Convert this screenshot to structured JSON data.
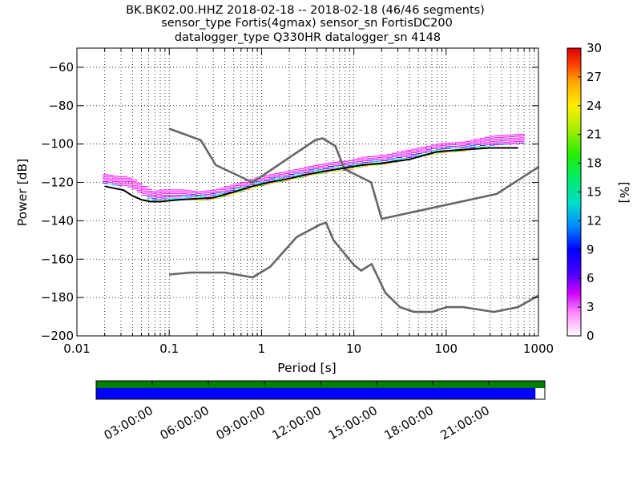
{
  "chart_data": {
    "type": "ppsd",
    "title_lines": [
      "BK.BK02.00.HHZ   2018-02-18 -- 2018-02-18  (46/46 segments)",
      "sensor_type Fortis(4gmax) sensor_sn FortisDC200",
      "datalogger_type Q330HR datalogger_sn 4148"
    ],
    "xlabel": "Period [s]",
    "ylabel": "Power [dB]",
    "xscale": "log",
    "xlim": [
      0.01,
      1000
    ],
    "ylim": [
      -200,
      -50
    ],
    "x_ticks": [
      0.01,
      0.1,
      1,
      10,
      100,
      1000
    ],
    "x_tick_labels": [
      "0.01",
      "0.1",
      "1",
      "10",
      "100",
      "1000"
    ],
    "y_ticks": [
      -60,
      -80,
      -100,
      -120,
      -140,
      -160,
      -180,
      -200
    ],
    "y_tick_labels": [
      "−60",
      "−80",
      "−100",
      "−120",
      "−140",
      "−160",
      "−180",
      "−200"
    ],
    "grid": "dotted",
    "colorbar": {
      "label": "[%]",
      "range": [
        0,
        30
      ],
      "ticks": [
        0,
        3,
        6,
        9,
        12,
        15,
        18,
        21,
        24,
        27,
        30
      ],
      "tick_labels": [
        "0",
        "3",
        "6",
        "9",
        "12",
        "15",
        "18",
        "21",
        "24",
        "27",
        "30"
      ]
    },
    "series": [
      {
        "role": "model-high",
        "color": "#666666",
        "points": [
          [
            0.1,
            -92
          ],
          [
            0.22,
            -98
          ],
          [
            0.32,
            -111
          ],
          [
            0.8,
            -120
          ],
          [
            3.8,
            -98
          ],
          [
            4.6,
            -97
          ],
          [
            6.3,
            -101
          ],
          [
            7.9,
            -113
          ],
          [
            15.4,
            -120
          ],
          [
            20,
            -139
          ],
          [
            354,
            -126
          ],
          [
            1000,
            -112
          ]
        ]
      },
      {
        "role": "model-low",
        "color": "#666666",
        "points": [
          [
            0.1,
            -168
          ],
          [
            0.17,
            -167
          ],
          [
            0.4,
            -167
          ],
          [
            0.8,
            -169.5
          ],
          [
            1.24,
            -164
          ],
          [
            2.4,
            -148.5
          ],
          [
            4.3,
            -142
          ],
          [
            5,
            -141
          ],
          [
            6,
            -150
          ],
          [
            10,
            -163
          ],
          [
            12,
            -166
          ],
          [
            15.6,
            -162.5
          ],
          [
            21.9,
            -177.5
          ],
          [
            31.6,
            -185
          ],
          [
            45,
            -187.5
          ],
          [
            70,
            -187.5
          ],
          [
            101,
            -185
          ],
          [
            154,
            -185
          ],
          [
            328,
            -187.5
          ],
          [
            600,
            -185
          ],
          [
            1000,
            -179
          ]
        ]
      },
      {
        "role": "mode",
        "color": "#000000",
        "points": [
          [
            0.02,
            -122
          ],
          [
            0.025,
            -123
          ],
          [
            0.032,
            -124
          ],
          [
            0.04,
            -127
          ],
          [
            0.05,
            -129
          ],
          [
            0.063,
            -130
          ],
          [
            0.08,
            -130
          ],
          [
            0.1,
            -129.5
          ],
          [
            0.13,
            -129
          ],
          [
            0.2,
            -128.5
          ],
          [
            0.3,
            -128
          ],
          [
            0.5,
            -125
          ],
          [
            0.8,
            -122
          ],
          [
            1.2,
            -120
          ],
          [
            2,
            -118
          ],
          [
            3,
            -116
          ],
          [
            5,
            -114
          ],
          [
            8,
            -112.5
          ],
          [
            12,
            -111
          ],
          [
            20,
            -110
          ],
          [
            40,
            -108
          ],
          [
            80,
            -104
          ],
          [
            150,
            -103
          ],
          [
            300,
            -102
          ],
          [
            600,
            -102
          ]
        ]
      },
      {
        "role": "density-spread",
        "color": "#ff00ff",
        "points": [
          [
            0.02,
            -119
          ],
          [
            0.025,
            -120
          ],
          [
            0.032,
            -120
          ],
          [
            0.04,
            -122
          ],
          [
            0.05,
            -125
          ],
          [
            0.063,
            -128
          ],
          [
            0.08,
            -127
          ],
          [
            0.1,
            -127
          ],
          [
            0.13,
            -127
          ],
          [
            0.2,
            -128
          ],
          [
            0.3,
            -127
          ],
          [
            0.5,
            -124
          ],
          [
            0.8,
            -121
          ],
          [
            1.2,
            -119
          ],
          [
            2,
            -117
          ],
          [
            3,
            -115
          ],
          [
            5,
            -113
          ],
          [
            8,
            -112
          ],
          [
            12,
            -110
          ],
          [
            20,
            -109
          ],
          [
            40,
            -106
          ],
          [
            80,
            -103
          ],
          [
            150,
            -102
          ],
          [
            300,
            -99
          ],
          [
            600,
            -98
          ]
        ]
      }
    ],
    "availability_bar": {
      "time_ticks": [
        "03:00:00",
        "06:00:00",
        "09:00:00",
        "12:00:00",
        "15:00:00",
        "18:00:00",
        "21:00:00"
      ],
      "data_color": "#008000",
      "used_color": "#0000ff",
      "used_fraction": 0.979
    }
  }
}
